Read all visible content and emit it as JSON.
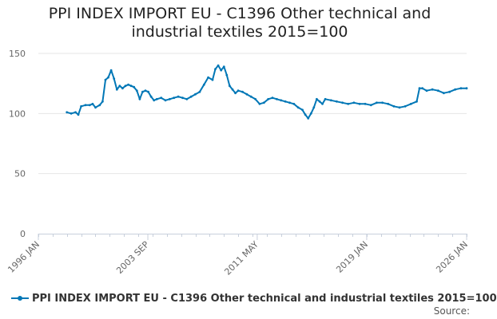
{
  "chart_data": {
    "type": "line",
    "title": "PPI INDEX IMPORT EU - C1396 Other technical and\nindustrial textiles 2015=100",
    "xlabel": "",
    "ylabel": "",
    "ylim": [
      0,
      150
    ],
    "yticks": [
      0,
      50,
      100,
      150
    ],
    "xlim": [
      1996.0,
      2026.0
    ],
    "xticks": [
      {
        "value": 1996.0,
        "label": "1996 JAN"
      },
      {
        "value": 2003.67,
        "label": "2003 SEP"
      },
      {
        "value": 2011.33,
        "label": "2011 MAY"
      },
      {
        "value": 2019.0,
        "label": "2019 JAN"
      },
      {
        "value": 2026.0,
        "label": "2026 JAN"
      }
    ],
    "legend": "bottom",
    "series": [
      {
        "name": "PPI INDEX IMPORT EU - C1396 Other technical and industrial textiles 2015=100",
        "color": "#0077b6",
        "points": [
          [
            1998.0,
            101
          ],
          [
            1998.3,
            100
          ],
          [
            1998.6,
            101
          ],
          [
            1998.8,
            99
          ],
          [
            1999.0,
            106
          ],
          [
            1999.3,
            107
          ],
          [
            1999.6,
            107
          ],
          [
            1999.8,
            108
          ],
          [
            2000.0,
            105
          ],
          [
            2000.3,
            107
          ],
          [
            2000.5,
            110
          ],
          [
            2000.7,
            128
          ],
          [
            2000.9,
            130
          ],
          [
            2001.1,
            136
          ],
          [
            2001.3,
            129
          ],
          [
            2001.5,
            120
          ],
          [
            2001.7,
            123
          ],
          [
            2001.9,
            121
          ],
          [
            2002.1,
            123
          ],
          [
            2002.3,
            124
          ],
          [
            2002.5,
            123
          ],
          [
            2002.7,
            122
          ],
          [
            2002.9,
            119
          ],
          [
            2003.1,
            112
          ],
          [
            2003.3,
            118
          ],
          [
            2003.5,
            119
          ],
          [
            2003.7,
            118
          ],
          [
            2003.9,
            114
          ],
          [
            2004.1,
            111
          ],
          [
            2004.3,
            112
          ],
          [
            2004.6,
            113
          ],
          [
            2004.9,
            111
          ],
          [
            2005.2,
            112
          ],
          [
            2005.5,
            113
          ],
          [
            2005.8,
            114
          ],
          [
            2006.1,
            113
          ],
          [
            2006.4,
            112
          ],
          [
            2006.7,
            114
          ],
          [
            2007.0,
            116
          ],
          [
            2007.3,
            118
          ],
          [
            2007.6,
            124
          ],
          [
            2007.9,
            130
          ],
          [
            2008.2,
            128
          ],
          [
            2008.4,
            137
          ],
          [
            2008.6,
            140
          ],
          [
            2008.8,
            136
          ],
          [
            2009.0,
            139
          ],
          [
            2009.2,
            132
          ],
          [
            2009.4,
            123
          ],
          [
            2009.6,
            120
          ],
          [
            2009.8,
            117
          ],
          [
            2010.0,
            119
          ],
          [
            2010.3,
            118
          ],
          [
            2010.6,
            116
          ],
          [
            2010.9,
            114
          ],
          [
            2011.2,
            112
          ],
          [
            2011.5,
            108
          ],
          [
            2011.8,
            109
          ],
          [
            2012.1,
            112
          ],
          [
            2012.4,
            113
          ],
          [
            2012.7,
            112
          ],
          [
            2013.0,
            111
          ],
          [
            2013.3,
            110
          ],
          [
            2013.6,
            109
          ],
          [
            2013.9,
            108
          ],
          [
            2014.2,
            105
          ],
          [
            2014.5,
            103
          ],
          [
            2014.7,
            99
          ],
          [
            2014.9,
            96
          ],
          [
            2015.1,
            100
          ],
          [
            2015.3,
            105
          ],
          [
            2015.5,
            112
          ],
          [
            2015.7,
            110
          ],
          [
            2015.9,
            108
          ],
          [
            2016.1,
            112
          ],
          [
            2016.5,
            111
          ],
          [
            2016.9,
            110
          ],
          [
            2017.3,
            109
          ],
          [
            2017.7,
            108
          ],
          [
            2018.1,
            109
          ],
          [
            2018.5,
            108
          ],
          [
            2018.9,
            108
          ],
          [
            2019.3,
            107
          ],
          [
            2019.7,
            109
          ],
          [
            2020.1,
            109
          ],
          [
            2020.5,
            108
          ],
          [
            2020.9,
            106
          ],
          [
            2021.3,
            105
          ],
          [
            2021.7,
            106
          ],
          [
            2022.1,
            108
          ],
          [
            2022.5,
            110
          ],
          [
            2022.7,
            121
          ],
          [
            2022.9,
            121
          ],
          [
            2023.2,
            119
          ],
          [
            2023.6,
            120
          ],
          [
            2024.0,
            119
          ],
          [
            2024.4,
            117
          ],
          [
            2024.8,
            118
          ],
          [
            2025.2,
            120
          ],
          [
            2025.6,
            121
          ],
          [
            2026.0,
            121
          ]
        ]
      }
    ]
  },
  "source_label": "Source:"
}
